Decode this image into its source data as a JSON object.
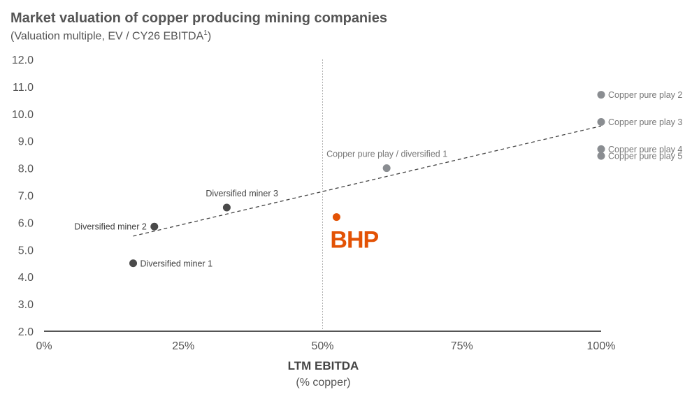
{
  "title": "Market valuation of copper producing mining companies",
  "subtitle_main": "(Valuation multiple, EV / CY26 EBITDA",
  "subtitle_sup": "1",
  "subtitle_end": ")",
  "xlabel": "LTM EBITDA",
  "xlabel_sub": "(% copper)",
  "colors": {
    "dark": "#4a4a4a",
    "grey": "#8a8d91",
    "bhp": "#e35205"
  },
  "chart_data": {
    "type": "scatter",
    "title": "Market valuation of copper producing mining companies",
    "xlabel": "LTM EBITDA (% copper)",
    "ylabel": "",
    "xlim": [
      0,
      100
    ],
    "ylim": [
      2.0,
      12.0
    ],
    "xticks": [
      0,
      25,
      50,
      75,
      100
    ],
    "xtick_labels": [
      "0%",
      "25%",
      "50%",
      "75%",
      "100%"
    ],
    "yticks": [
      2.0,
      3.0,
      4.0,
      5.0,
      6.0,
      7.0,
      8.0,
      9.0,
      10.0,
      11.0,
      12.0
    ],
    "ytick_labels": [
      "2.0",
      "3.0",
      "4.0",
      "5.0",
      "6.0",
      "7.0",
      "8.0",
      "9.0",
      "10.0",
      "11.0",
      "12.0"
    ],
    "reference_line_x": 50,
    "trendline": {
      "x": [
        16,
        100
      ],
      "y": [
        5.5,
        9.55
      ]
    },
    "points": [
      {
        "name": "Diversified miner 1",
        "x": 16,
        "y": 4.5,
        "color": "#4a4a4a",
        "label_side": "right"
      },
      {
        "name": "Diversified miner 2",
        "x": 19.8,
        "y": 5.85,
        "color": "#4a4a4a",
        "label_side": "left"
      },
      {
        "name": "Diversified miner 3",
        "x": 32.8,
        "y": 6.55,
        "color": "#4a4a4a",
        "label_side": "above"
      },
      {
        "name": "Copper pure play / diversified 1",
        "x": 61.5,
        "y": 8.0,
        "color": "#8a8d91",
        "label_side": "above"
      },
      {
        "name": "Copper pure play 2",
        "x": 100,
        "y": 10.7,
        "color": "#8a8d91",
        "label_side": "right"
      },
      {
        "name": "Copper pure play 3",
        "x": 100,
        "y": 9.7,
        "color": "#8a8d91",
        "label_side": "right"
      },
      {
        "name": "Copper pure play 4",
        "x": 100,
        "y": 8.7,
        "color": "#8a8d91",
        "label_side": "right"
      },
      {
        "name": "Copper pure play 5",
        "x": 100,
        "y": 8.45,
        "color": "#8a8d91",
        "label_side": "right"
      },
      {
        "name": "BHP",
        "x": 52.5,
        "y": 6.2,
        "color": "#e35205",
        "label_side": "below",
        "logo": true
      }
    ]
  }
}
